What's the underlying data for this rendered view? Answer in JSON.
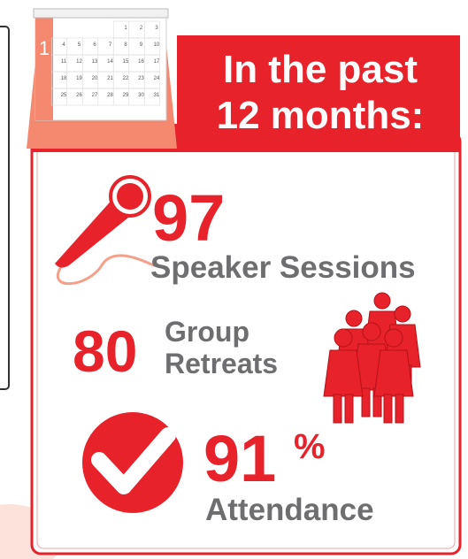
{
  "calendar": {
    "month": "1",
    "days": [
      "1",
      "2",
      "3",
      "4",
      "5",
      "6",
      "7",
      "8",
      "9",
      "10",
      "11",
      "12",
      "13",
      "14",
      "15",
      "16",
      "17",
      "18",
      "19",
      "20",
      "21",
      "22",
      "23",
      "24",
      "25",
      "26",
      "27",
      "28",
      "29",
      "30",
      "31"
    ]
  },
  "header": {
    "line1": "In the past",
    "line2": "12 months:"
  },
  "stats": [
    {
      "value": "97",
      "label": "Speaker Sessions"
    },
    {
      "value": "80",
      "label_line1": "Group",
      "label_line2": "Retreats"
    },
    {
      "value": "91",
      "suffix": "%",
      "label": "Attendance"
    }
  ]
}
